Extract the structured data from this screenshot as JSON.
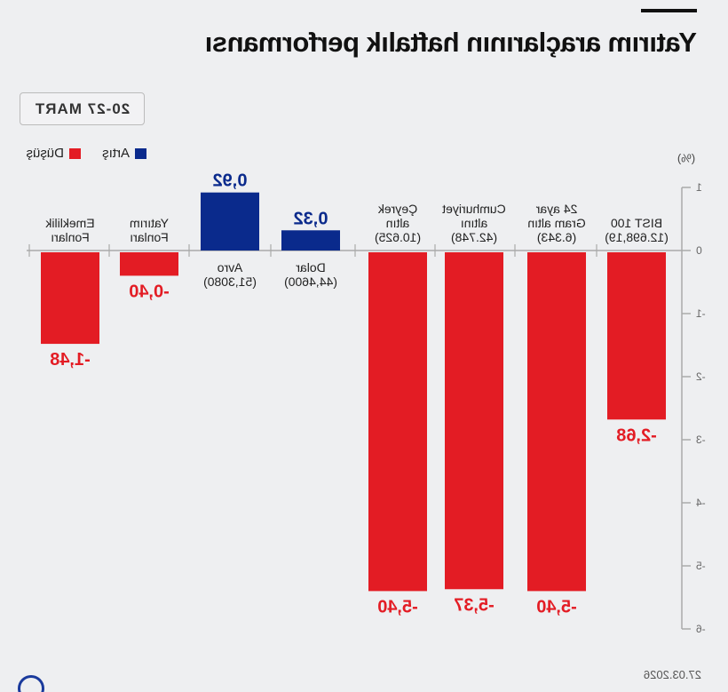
{
  "header": {
    "title": "Yatırım araçlarının haftalık performansı",
    "date_range": "20-27 MART"
  },
  "legend": {
    "increase_label": "Artış",
    "decrease_label": "Düşüş",
    "increase_color": "#0a2a8c",
    "decrease_color": "#e31c24"
  },
  "footer": {
    "date": "27.03.2026",
    "logo": "AA"
  },
  "chart_data": {
    "type": "bar",
    "title": "Yatırım araçlarının haftalık performansı",
    "ylabel": "(%)",
    "ylim": [
      -6,
      1
    ],
    "yticks": [
      "1",
      "0",
      "-1",
      "-2",
      "-3",
      "-4",
      "-5",
      "-6"
    ],
    "categories": [
      "BIST 100",
      "24 ayar Gram altın",
      "Cumhuriyet altını",
      "Çeyrek altın",
      "Dolar",
      "Avro",
      "Yatırım Fonları",
      "Emeklilik Fonları"
    ],
    "category_lines": [
      [
        "BIST 100",
        "(12.698,19)"
      ],
      [
        "24 ayar",
        "Gram altın",
        "(6.343)"
      ],
      [
        "Cumhuriyet",
        "altını",
        "(42.748)"
      ],
      [
        "Çeyrek",
        "altın",
        "(10.625)"
      ],
      [
        "Dolar",
        "(44,4600)"
      ],
      [
        "Avro",
        "(51,3080)"
      ],
      [
        "Yatırım",
        "Fonları"
      ],
      [
        "Emeklilik",
        "Fonları"
      ]
    ],
    "values": [
      -2.68,
      -5.4,
      -5.37,
      -5.4,
      0.32,
      0.92,
      -0.4,
      -1.48
    ],
    "value_labels": [
      "-2,68",
      "-5,40",
      "-5,37",
      "-5,40",
      "0,32",
      "0,92",
      "-0,40",
      "-1,48"
    ],
    "legend_position": "top-left",
    "grid": false
  }
}
